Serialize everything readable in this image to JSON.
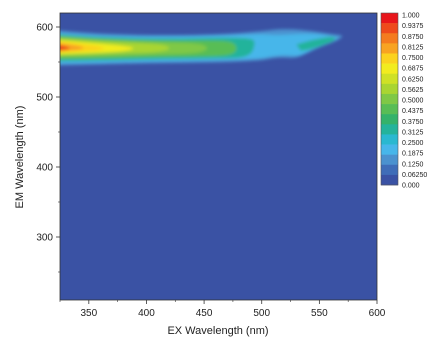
{
  "chart_data": {
    "type": "heatmap",
    "title": "",
    "xlabel": "EX Wavelength (nm)",
    "ylabel": "EM Wavelength (nm)",
    "xlim": [
      325,
      600
    ],
    "ylim": [
      210,
      620
    ],
    "x_ticks": [
      "350",
      "400",
      "450",
      "500",
      "550",
      "600"
    ],
    "x_tick_values": [
      350,
      400,
      450,
      500,
      550,
      600
    ],
    "y_ticks": [
      "300",
      "400",
      "500",
      "600"
    ],
    "y_tick_values": [
      300,
      400,
      500,
      600
    ],
    "colorbar": {
      "range": [
        0,
        1
      ],
      "labels": [
        "1.000",
        "0.9375",
        "0.8750",
        "0.8125",
        "0.7500",
        "0.6875",
        "0.6250",
        "0.5625",
        "0.5000",
        "0.4375",
        "0.3750",
        "0.3125",
        "0.2500",
        "0.1875",
        "0.1250",
        "0.06250",
        "0.000"
      ],
      "colors": [
        "#e8161b",
        "#ee4a1c",
        "#f47b1f",
        "#f8a322",
        "#fbd21f",
        "#f2ec1f",
        "#cfe126",
        "#a9d532",
        "#7fc846",
        "#58bd55",
        "#34b26a",
        "#24b39b",
        "#2ab8d0",
        "#47b6ea",
        "#4b92cf",
        "#3f6db8",
        "#3a52a4"
      ]
    },
    "features": [
      {
        "ex": 325,
        "em": 568,
        "value": 1.0
      },
      {
        "ex": 350,
        "em": 567,
        "value": 0.86
      },
      {
        "ex": 400,
        "em": 565,
        "value": 0.68
      },
      {
        "ex": 450,
        "em": 566,
        "value": 0.52
      },
      {
        "ex": 480,
        "em": 567,
        "value": 0.4
      },
      {
        "ex": 500,
        "em": 568,
        "value": 0.24
      },
      {
        "ex": 520,
        "em": 566,
        "value": 0.2
      },
      {
        "ex": 545,
        "em": 565,
        "value": 0.4
      },
      {
        "ex": 565,
        "em": 580,
        "value": 0.22
      }
    ]
  }
}
